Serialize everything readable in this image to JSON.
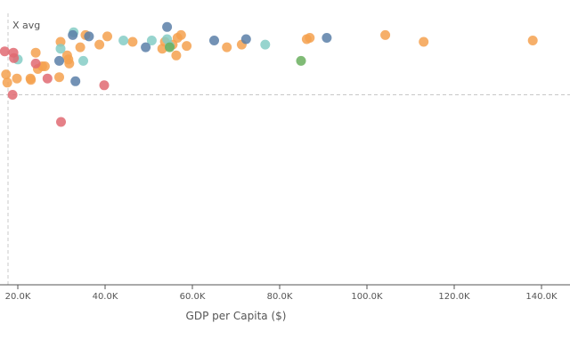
{
  "colors": {
    "orange": "#f5a14f",
    "teal": "#85cdc5",
    "blue": "#5b7fa8",
    "red": "#e16a72",
    "green": "#6aaf5e",
    "axis": "#555555",
    "refline": "#c8c8c8"
  },
  "chart_data": {
    "type": "scatter",
    "xlabel": "GDP per Capita ($)",
    "ylabel": "",
    "x_ref_line_label": "X avg",
    "xlim": [
      16000,
      146000
    ],
    "ylim": [
      0,
      10
    ],
    "y_ref_value": 7.0,
    "grid": false,
    "legend": "none",
    "xticks": [
      {
        "value": 20000,
        "label": "20.0K"
      },
      {
        "value": 40000,
        "label": "40.0K"
      },
      {
        "value": 60000,
        "label": "60.0K"
      },
      {
        "value": 80000,
        "label": "80.0K"
      },
      {
        "value": 100000,
        "label": "100.0K"
      },
      {
        "value": 120000,
        "label": "120.0K"
      },
      {
        "value": 140000,
        "label": "140.0K"
      }
    ],
    "series": [
      {
        "color_key": "orange",
        "points": [
          [
            17600,
            7.45
          ],
          [
            17300,
            7.75
          ],
          [
            19800,
            7.6
          ],
          [
            22900,
            7.6
          ],
          [
            24100,
            8.55
          ],
          [
            24600,
            7.95
          ],
          [
            25600,
            8.05
          ],
          [
            26200,
            8.05
          ],
          [
            23000,
            7.55
          ],
          [
            29800,
            8.95
          ],
          [
            31300,
            8.45
          ],
          [
            31800,
            8.15
          ],
          [
            31600,
            8.3
          ],
          [
            29500,
            7.65
          ],
          [
            34300,
            8.75
          ],
          [
            35500,
            9.2
          ],
          [
            38700,
            8.85
          ],
          [
            40500,
            9.15
          ],
          [
            46300,
            8.95
          ],
          [
            55500,
            8.85
          ],
          [
            56600,
            9.1
          ],
          [
            53100,
            8.7
          ],
          [
            53700,
            8.95
          ],
          [
            57400,
            9.2
          ],
          [
            56300,
            8.45
          ],
          [
            58700,
            8.8
          ],
          [
            67900,
            8.75
          ],
          [
            71300,
            8.85
          ],
          [
            86200,
            9.05
          ],
          [
            86900,
            9.1
          ],
          [
            104200,
            9.2
          ],
          [
            113000,
            8.95
          ],
          [
            138000,
            9.0
          ]
        ]
      },
      {
        "color_key": "teal",
        "points": [
          [
            20000,
            8.3
          ],
          [
            29800,
            8.7
          ],
          [
            32800,
            9.3
          ],
          [
            35000,
            8.25
          ],
          [
            44200,
            9.0
          ],
          [
            50700,
            9.0
          ],
          [
            54200,
            9.05
          ],
          [
            76700,
            8.85
          ],
          [
            54800,
            8.8
          ]
        ]
      },
      {
        "color_key": "blue",
        "points": [
          [
            32600,
            9.2
          ],
          [
            33200,
            7.5
          ],
          [
            36300,
            9.15
          ],
          [
            49300,
            8.75
          ],
          [
            54200,
            9.5
          ],
          [
            65000,
            9.0
          ],
          [
            72300,
            9.05
          ],
          [
            90800,
            9.1
          ],
          [
            29500,
            8.25
          ]
        ]
      },
      {
        "color_key": "red",
        "points": [
          [
            17000,
            8.6
          ],
          [
            19000,
            8.55
          ],
          [
            19100,
            8.35
          ],
          [
            18800,
            7.0
          ],
          [
            24100,
            8.15
          ],
          [
            26800,
            7.6
          ],
          [
            29900,
            6.0
          ],
          [
            39800,
            7.35
          ]
        ]
      },
      {
        "color_key": "green",
        "points": [
          [
            54800,
            8.75
          ],
          [
            84900,
            8.25
          ]
        ]
      }
    ]
  }
}
